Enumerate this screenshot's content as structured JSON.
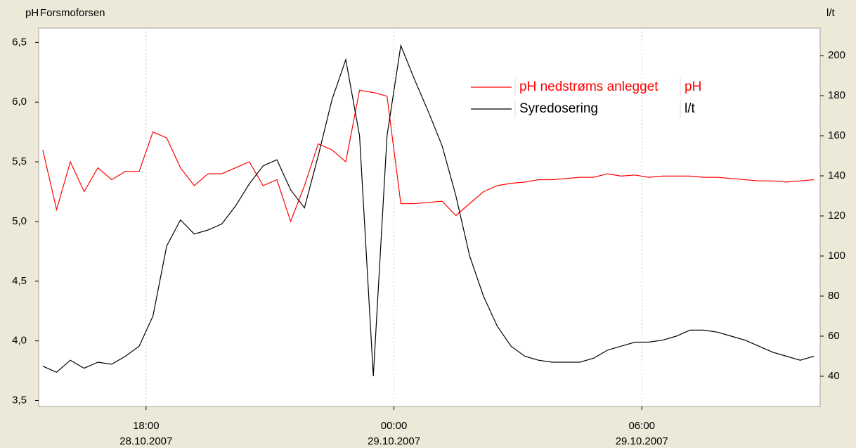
{
  "chart_data": {
    "type": "line",
    "ylabel": "pH",
    "title": "Forsmoforsen",
    "y2label": "l/t",
    "x": [
      "2007-10-28T15:30",
      "2007-10-28T15:50",
      "2007-10-28T16:10",
      "2007-10-28T16:30",
      "2007-10-28T16:50",
      "2007-10-28T17:10",
      "2007-10-28T17:30",
      "2007-10-28T17:50",
      "2007-10-28T18:10",
      "2007-10-28T18:30",
      "2007-10-28T18:50",
      "2007-10-28T19:10",
      "2007-10-28T19:30",
      "2007-10-28T19:50",
      "2007-10-28T20:10",
      "2007-10-28T20:30",
      "2007-10-28T20:50",
      "2007-10-28T21:10",
      "2007-10-28T21:30",
      "2007-10-28T21:50",
      "2007-10-28T22:10",
      "2007-10-28T22:30",
      "2007-10-28T22:50",
      "2007-10-28T23:10",
      "2007-10-28T23:30",
      "2007-10-28T23:50",
      "2007-10-29T00:10",
      "2007-10-29T00:30",
      "2007-10-29T00:50",
      "2007-10-29T01:10",
      "2007-10-29T01:30",
      "2007-10-29T01:50",
      "2007-10-29T02:10",
      "2007-10-29T02:30",
      "2007-10-29T02:50",
      "2007-10-29T03:10",
      "2007-10-29T03:30",
      "2007-10-29T03:50",
      "2007-10-29T04:10",
      "2007-10-29T04:30",
      "2007-10-29T04:50",
      "2007-10-29T05:10",
      "2007-10-29T05:30",
      "2007-10-29T05:50",
      "2007-10-29T06:10",
      "2007-10-29T06:30",
      "2007-10-29T06:50",
      "2007-10-29T07:10",
      "2007-10-29T07:30",
      "2007-10-29T07:50",
      "2007-10-29T08:10",
      "2007-10-29T08:30",
      "2007-10-29T08:50",
      "2007-10-29T09:10",
      "2007-10-29T09:30",
      "2007-10-29T09:50",
      "2007-10-29T10:10"
    ],
    "series": [
      {
        "name": "pH nedstrøms anlegget",
        "unit": "pH",
        "color": "#ff0000",
        "axis": "y",
        "values": [
          5.6,
          5.1,
          5.5,
          5.25,
          5.45,
          5.35,
          5.42,
          5.42,
          5.75,
          5.7,
          5.45,
          5.3,
          5.4,
          5.4,
          5.45,
          5.5,
          5.3,
          5.35,
          5.0,
          5.3,
          5.65,
          5.6,
          5.5,
          6.1,
          6.08,
          6.05,
          5.15,
          5.15,
          5.16,
          5.17,
          5.05,
          5.15,
          5.25,
          5.3,
          5.32,
          5.33,
          5.35,
          5.35,
          5.36,
          5.37,
          5.37,
          5.4,
          5.38,
          5.39,
          5.37,
          5.38,
          5.38,
          5.38,
          5.37,
          5.37,
          5.36,
          5.35,
          5.34,
          5.34,
          5.33,
          5.34,
          5.35
        ]
      },
      {
        "name": "Syredosering",
        "unit": "l/t",
        "color": "#000000",
        "axis": "y2",
        "values": [
          45,
          42,
          48,
          44,
          47,
          46,
          50,
          55,
          70,
          105,
          118,
          111,
          113,
          116,
          125,
          136,
          145,
          148,
          133,
          124,
          150,
          178,
          198,
          160,
          40,
          160,
          205,
          188,
          172,
          155,
          130,
          100,
          80,
          65,
          55,
          50,
          48,
          47,
          47,
          47,
          49,
          53,
          55,
          57,
          57,
          58,
          60,
          63,
          63,
          62,
          60,
          58,
          55,
          52,
          50,
          48,
          50
        ]
      }
    ],
    "xlim": [
      "2007-10-28T15:24",
      "2007-10-29T10:19"
    ],
    "xticks": [
      {
        "value": "2007-10-28T18:00",
        "label": [
          "18:00",
          "28.10.2007"
        ]
      },
      {
        "value": "2007-10-29T00:00",
        "label": [
          "00:00",
          "29.10.2007"
        ]
      },
      {
        "value": "2007-10-29T06:00",
        "label": [
          "06:00",
          "29.10.2007"
        ]
      }
    ],
    "ylim": [
      3.45,
      6.62
    ],
    "yticks": [
      {
        "value": 3.5,
        "label": "3,5"
      },
      {
        "value": 4.0,
        "label": "4,0"
      },
      {
        "value": 4.5,
        "label": "4,5"
      },
      {
        "value": 5.0,
        "label": "5,0"
      },
      {
        "value": 5.5,
        "label": "5,5"
      },
      {
        "value": 6.0,
        "label": "6,0"
      },
      {
        "value": 6.5,
        "label": "6,5"
      }
    ],
    "y2lim": [
      24.9,
      213.7
    ],
    "y2ticks": [
      40,
      60,
      80,
      100,
      120,
      140,
      160,
      180,
      200
    ],
    "grid": "x"
  }
}
